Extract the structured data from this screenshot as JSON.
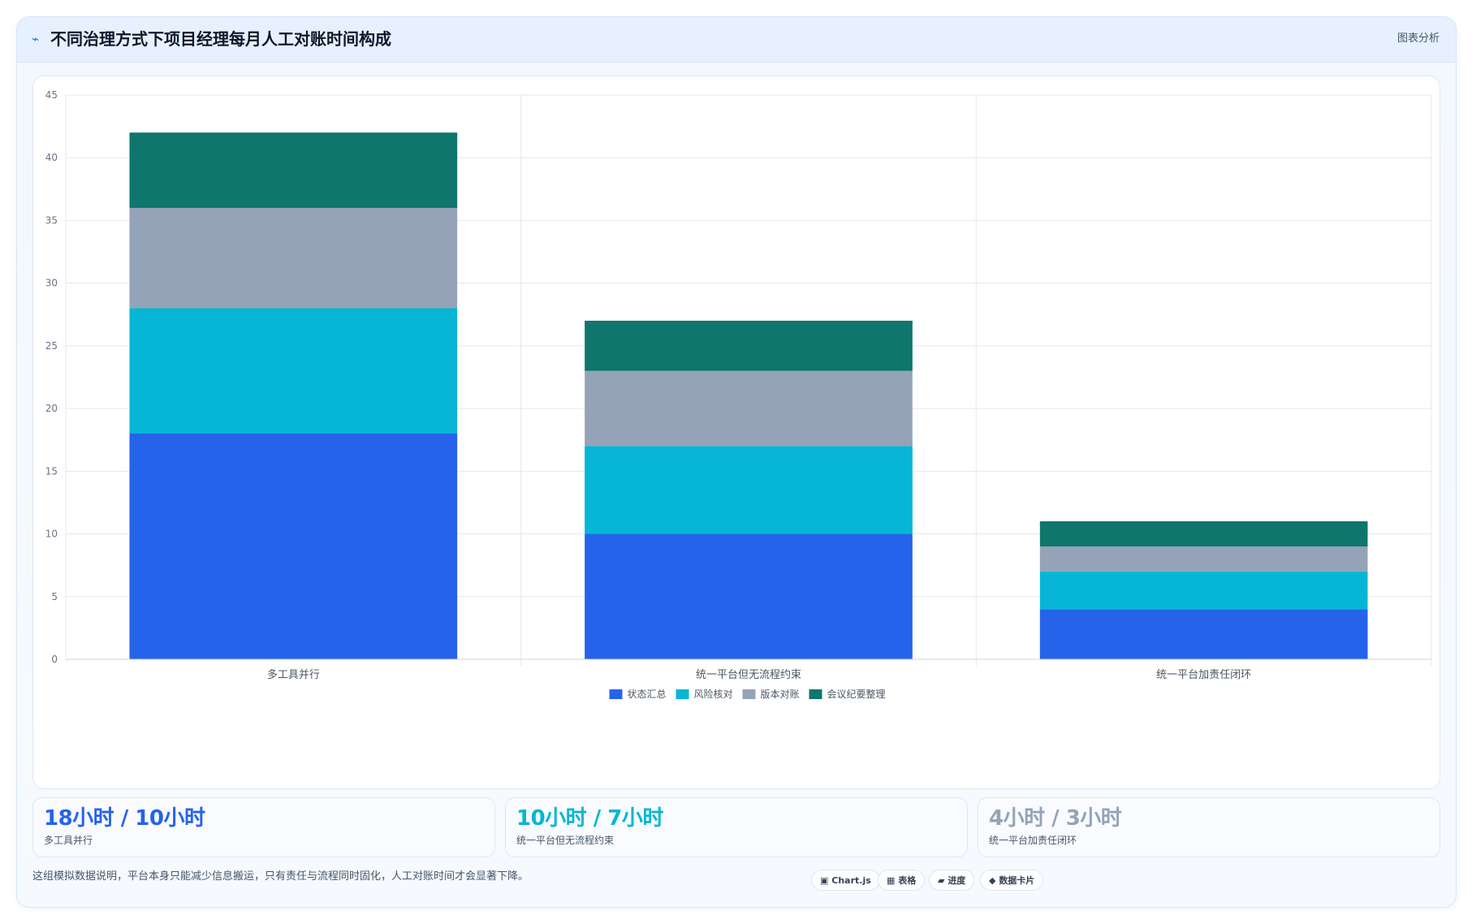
{
  "header": {
    "icon": "pulse-icon",
    "icon_glyph": "⌁",
    "title": "不同治理方式下项目经理每月人工对账时间构成",
    "action_label": "图表分析"
  },
  "colors": {
    "status_summary": "#2563eb",
    "risk_check": "#06b6d4",
    "version_reconcile": "#94a3b8",
    "meeting_minutes": "#0f766e",
    "grid": "#e5e7eb",
    "tick_text": "#6b7280"
  },
  "chart_data": {
    "type": "bar",
    "stacked": true,
    "categories": [
      "多工具并行",
      "统一平台但无流程约束",
      "统一平台加责任闭环"
    ],
    "series": [
      {
        "name": "状态汇总",
        "values": [
          18,
          10,
          4
        ],
        "color": "#2563eb"
      },
      {
        "name": "风险核对",
        "values": [
          10,
          7,
          3
        ],
        "color": "#06b6d4"
      },
      {
        "name": "版本对账",
        "values": [
          8,
          6,
          2
        ],
        "color": "#94a3b8"
      },
      {
        "name": "会议纪要整理",
        "values": [
          6,
          4,
          2
        ],
        "color": "#0f766e"
      }
    ],
    "title": "",
    "xlabel": "",
    "ylabel": "",
    "ylim": [
      0,
      45
    ],
    "yticks": [
      0,
      5,
      10,
      15,
      20,
      25,
      30,
      35,
      40,
      45
    ],
    "grid": true,
    "legend": "bottom-center"
  },
  "stats": [
    {
      "value": "18小时 / 10小时",
      "label": "多工具并行",
      "color": "#2563eb"
    },
    {
      "value": "10小时 / 7小时",
      "label": "统一平台但无流程约束",
      "color": "#06b6d4"
    },
    {
      "value": "4小时 / 3小时",
      "label": "统一平台加责任闭环",
      "color": "#94a3b8"
    }
  ],
  "footer": {
    "note": "这组模拟数据说明，平台本身只能减少信息搬运，只有责任与流程同时固化，人工对账时间才会显著下降。",
    "chips": [
      {
        "icon": "chart-icon",
        "glyph": "▣",
        "label": "Chart.js"
      },
      {
        "icon": "table-icon",
        "glyph": "▦",
        "label": "表格"
      },
      {
        "icon": "progress-icon",
        "glyph": "▰",
        "label": "进度"
      },
      {
        "icon": "data-card-icon",
        "glyph": "◆",
        "label": "数据卡片"
      }
    ]
  }
}
